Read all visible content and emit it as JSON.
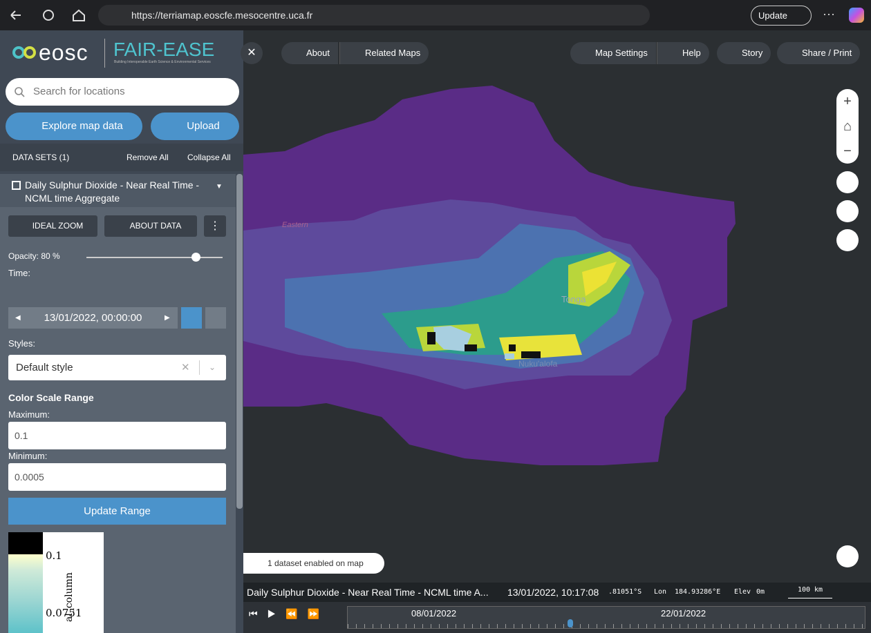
{
  "browser": {
    "url": "https://terriamap.eoscfe.mesocentre.uca.fr",
    "update_button": "Update"
  },
  "sidebar": {
    "logo": {
      "eosc": "eosc",
      "fair_ease": "FAIR-EASE",
      "tagline": "Building Interoperable Earth Science & Environmental Services"
    },
    "search_placeholder": "Search for locations",
    "explore_button": "Explore map data",
    "upload_button": "Upload",
    "datasets_header": {
      "title": "DATA SETS (1)",
      "remove_all": "Remove All",
      "collapse_all": "Collapse All"
    },
    "dataset": {
      "title": "Daily Sulphur Dioxide - Near Real Time - NCML time Aggregate",
      "ideal_zoom": "IDEAL ZOOM",
      "about_data": "ABOUT DATA",
      "opacity": "Opacity: 80 %",
      "time_label": "Time:",
      "time_value": "13/01/2022, 00:00:00",
      "styles_label": "Styles:",
      "style_value": "Default style",
      "color_scale_title": "Color Scale Range",
      "maximum_label": "Maximum:",
      "maximum_value": "0.1",
      "minimum_label": "Minimum:",
      "minimum_value": "0.0005",
      "update_range": "Update Range",
      "legend": {
        "labels": [
          "0.1",
          "0.0751"
        ],
        "axis_title": "al_column"
      }
    }
  },
  "map": {
    "top_left_buttons": [
      "About",
      "Related Maps"
    ],
    "top_right_buttons": [
      "Map Settings",
      "Help",
      "Story",
      "Share / Print"
    ],
    "place_labels": [
      "Eastern",
      "Tonga",
      "Nuku'alofa"
    ],
    "datasets_enabled": "1 dataset enabled on map",
    "status": {
      "dataset_name": "Daily Sulphur Dioxide - Near Real Time - NCML time A...",
      "datetime": "13/01/2022, 10:17:08",
      "lat": ".81051°S",
      "lon_label": "Lon",
      "lon": "184.93286°E",
      "elev_label": "Elev",
      "elev": "0m",
      "scale": "100 km"
    },
    "timeline": {
      "labels": [
        "08/01/2022",
        "22/01/2022"
      ]
    }
  }
}
